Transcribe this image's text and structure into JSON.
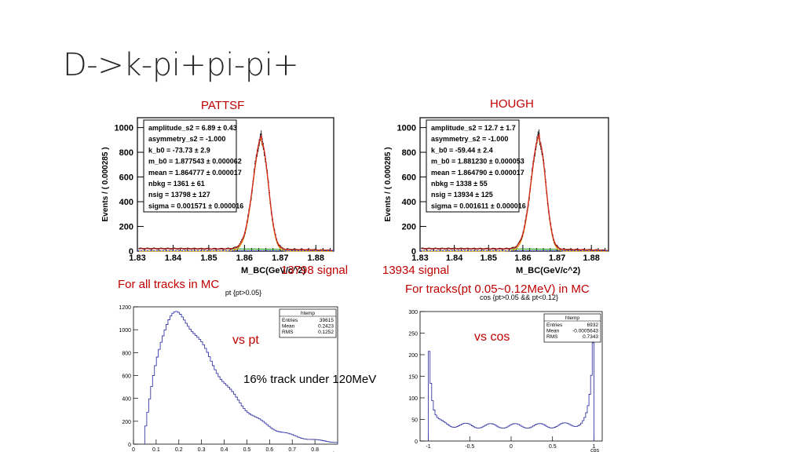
{
  "slide": {
    "title": "D->k-pi+pi-pi+",
    "label_left": "PATTSF",
    "label_right": "HOUGH",
    "signal_left": "13798 signal",
    "signal_right": "13934 signal",
    "caption_left": "For all tracks in MC",
    "caption_right": "For tracks(pt 0.05~0.12MeV)  in MC",
    "vs_pt": "vs pt",
    "vs_cos": "vs cos",
    "track_note": "16% track under 120MeV"
  },
  "colors": {
    "accent": "#c00000",
    "fit_total": "#d62728",
    "fit_bkg": "#2ca02c",
    "fit_sig": "#e6a817",
    "hist": "#3a3aa8"
  },
  "chart_data": [
    {
      "type": "line",
      "id": "mbc_pattsf",
      "xlabel": "M_BC(GeV/c^2)",
      "ylabel": "Events / ( 0.000285 )",
      "xlim": [
        1.83,
        1.885
      ],
      "ylim": [
        0,
        1080
      ],
      "xticks": [
        "1.83",
        "1.84",
        "1.85",
        "1.86",
        "1.87",
        "1.88"
      ],
      "yticks": [
        "0",
        "200",
        "400",
        "600",
        "800",
        "1000"
      ],
      "peak_x": 1.8648,
      "peak_y": 880,
      "sigma": 0.0016,
      "stats": [
        "amplitude_s2 =  6.89 ± 0.43",
        "asymmetry_s2 = -1.000",
        "k_b0 = -73.73 ± 2.9",
        "m_b0 =  1.877543 ± 0.000062",
        "mean =  1.864777 ± 0.000017",
        "nbkg =  1361 ± 61",
        "nsig =  13798 ± 127",
        "sigma =  0.001571 ± 0.000016"
      ]
    },
    {
      "type": "line",
      "id": "mbc_hough",
      "xlabel": "M_BC(GeV/c^2)",
      "ylabel": "Events / ( 0.000285 )",
      "xlim": [
        1.83,
        1.885
      ],
      "ylim": [
        0,
        1080
      ],
      "xticks": [
        "1.83",
        "1.84",
        "1.85",
        "1.86",
        "1.87",
        "1.88"
      ],
      "yticks": [
        "0",
        "200",
        "400",
        "600",
        "800",
        "1000"
      ],
      "peak_x": 1.8648,
      "peak_y": 890,
      "sigma": 0.0016,
      "stats": [
        "amplitude_s2 =  12.7 ± 1.7",
        "asymmetry_s2 = -1.000",
        "k_b0 = -59.44 ± 2.4",
        "m_b0 =  1.881230 ± 0.000053",
        "mean =  1.864790 ± 0.000017",
        "nbkg =  1338 ± 55",
        "nsig =  13934 ± 125",
        "sigma =  0.001611 ± 0.000016"
      ]
    },
    {
      "type": "bar",
      "id": "pt_hist",
      "title": "pt {pt>0.05}",
      "xlabel": "pt",
      "xlim": [
        0,
        0.9
      ],
      "ylim": [
        0,
        1200
      ],
      "xticks": [
        "0",
        "0.1",
        "0.2",
        "0.3",
        "0.4",
        "0.5",
        "0.6",
        "0.7",
        "0.8"
      ],
      "yticks": [
        "0",
        "200",
        "400",
        "600",
        "800",
        "1000",
        "1200"
      ],
      "stats_title": "htemp",
      "stats": [
        [
          "Entries",
          "39615"
        ],
        [
          "Mean",
          "0.2423"
        ],
        [
          "RMS",
          "0.1252"
        ]
      ]
    },
    {
      "type": "bar",
      "id": "cos_hist",
      "title": "cos {pt>0.05 && pt<0.12}",
      "xlabel": "cos",
      "xlim": [
        -1.1,
        1.1
      ],
      "ylim": [
        0,
        300
      ],
      "xticks": [
        "-1",
        "-0.5",
        "0",
        "0.5",
        "1"
      ],
      "yticks": [
        "0",
        "50",
        "100",
        "150",
        "200",
        "250",
        "300"
      ],
      "stats_title": "htemp",
      "stats": [
        [
          "Entries",
          "6932"
        ],
        [
          "Mean",
          "-0.0005643"
        ],
        [
          "RMS",
          "0.7343"
        ]
      ]
    }
  ]
}
